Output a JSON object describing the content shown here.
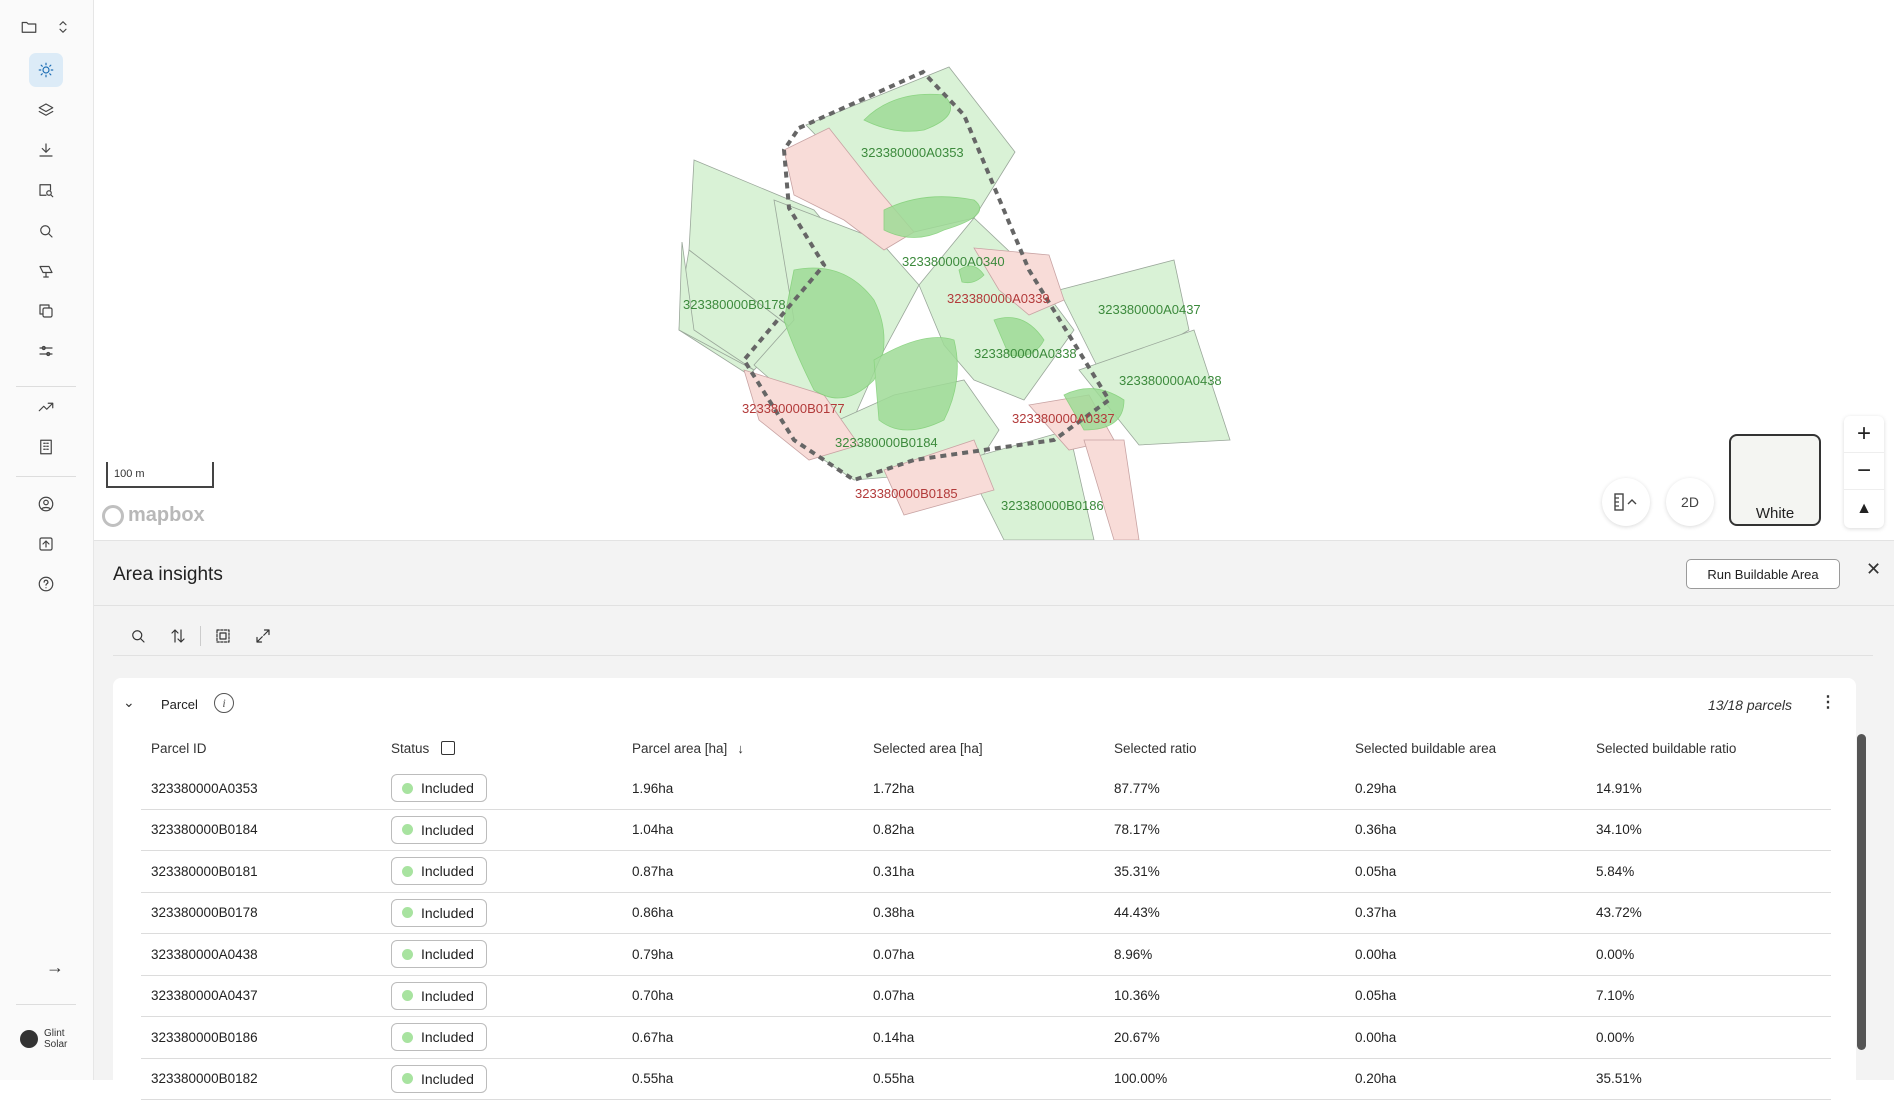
{
  "map": {
    "scale_label": "100 m",
    "attribution": "mapbox",
    "view_mode": "2D",
    "basemap_label": "White",
    "zoom_in": "+",
    "zoom_out": "−",
    "compass": "▲",
    "parcel_labels": [
      {
        "id": "323380000A0353",
        "status": "included"
      },
      {
        "id": "323380000A0340",
        "status": "included"
      },
      {
        "id": "323380000A0339",
        "status": "excluded"
      },
      {
        "id": "323380000A0437",
        "status": "included"
      },
      {
        "id": "323380000B0178",
        "status": "included"
      },
      {
        "id": "323380000A0338",
        "status": "included"
      },
      {
        "id": "323380000A0438",
        "status": "included"
      },
      {
        "id": "323380000B0177",
        "status": "excluded"
      },
      {
        "id": "323380000A0337",
        "status": "excluded"
      },
      {
        "id": "323380000B0184",
        "status": "included"
      },
      {
        "id": "323380000B0185",
        "status": "excluded"
      },
      {
        "id": "323380000B0186",
        "status": "included"
      }
    ],
    "colors": {
      "included_fill": "#d9f2d6",
      "excluded_fill": "#f8dcd8",
      "buildable_fill": "#9fdb97",
      "boundary": "#666666"
    }
  },
  "panel": {
    "title": "Area insights",
    "run_button": "Run Buildable Area",
    "close": "✕",
    "section_title": "Parcel",
    "info": "i",
    "count": "13/18 parcels",
    "columns": [
      "Parcel ID",
      "Status",
      "Parcel area [ha]",
      "Selected area [ha]",
      "Selected ratio",
      "Selected buildable area",
      "Selected buildable ratio"
    ],
    "sort_indicator": "↓",
    "rows": [
      [
        "323380000A0353",
        "Included",
        "1.96ha",
        "1.72ha",
        "87.77%",
        "0.29ha",
        "14.91%"
      ],
      [
        "323380000B0184",
        "Included",
        "1.04ha",
        "0.82ha",
        "78.17%",
        "0.36ha",
        "34.10%"
      ],
      [
        "323380000B0181",
        "Included",
        "0.87ha",
        "0.31ha",
        "35.31%",
        "0.05ha",
        "5.84%"
      ],
      [
        "323380000B0178",
        "Included",
        "0.86ha",
        "0.38ha",
        "44.43%",
        "0.37ha",
        "43.72%"
      ],
      [
        "323380000A0438",
        "Included",
        "0.79ha",
        "0.07ha",
        "8.96%",
        "0.00ha",
        "0.00%"
      ],
      [
        "323380000A0437",
        "Included",
        "0.70ha",
        "0.07ha",
        "10.36%",
        "0.05ha",
        "7.10%"
      ],
      [
        "323380000B0186",
        "Included",
        "0.67ha",
        "0.14ha",
        "20.67%",
        "0.00ha",
        "0.00%"
      ],
      [
        "323380000B0182",
        "Included",
        "0.55ha",
        "0.55ha",
        "100.00%",
        "0.20ha",
        "35.51%"
      ]
    ]
  },
  "sidebar": {
    "expand_arrow": "→",
    "brand": "Glint Solar",
    "accent": "#1f6fb5"
  }
}
